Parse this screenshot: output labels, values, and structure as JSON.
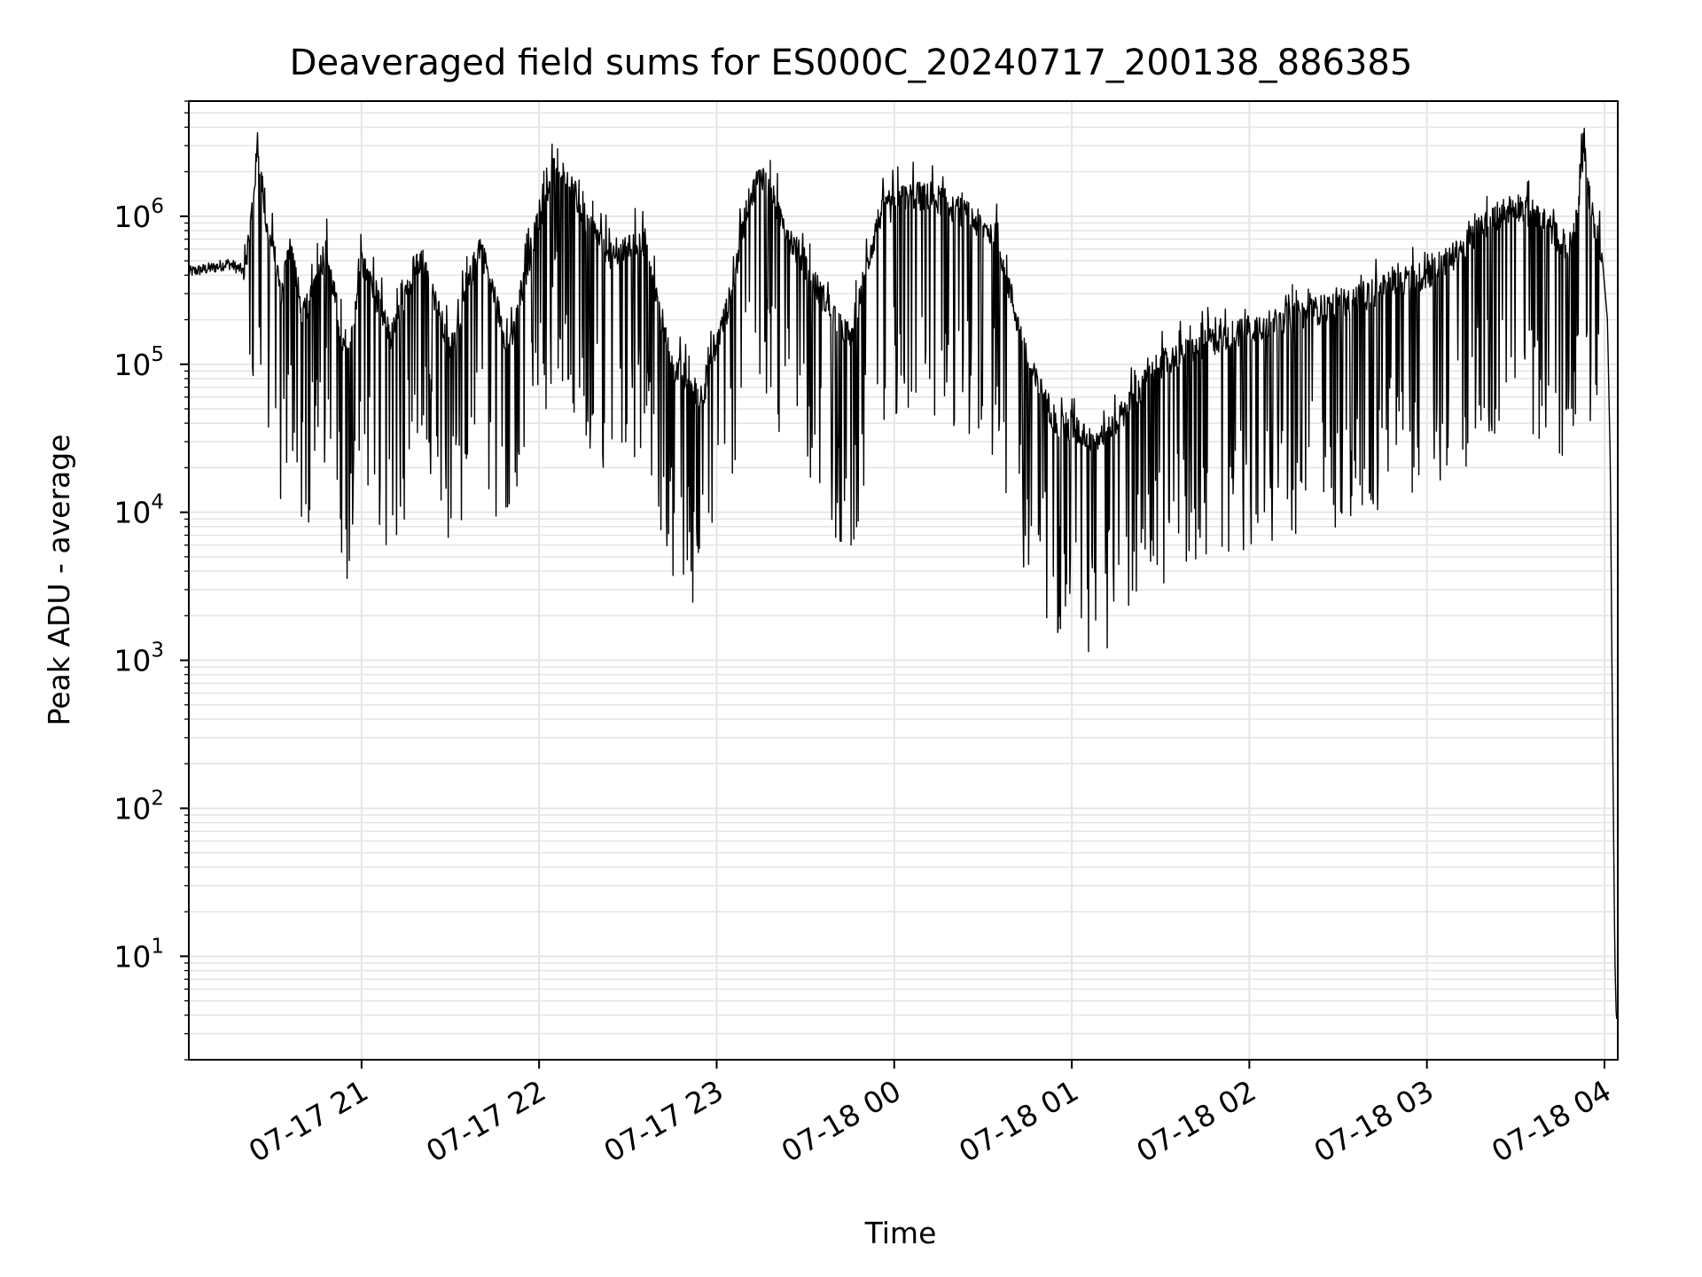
{
  "chart_data": {
    "type": "line",
    "title": "Deaveraged field sums for ES000C_20240717_200138_886385",
    "xlabel": "Time",
    "ylabel": "Peak ADU - average",
    "x_axis_kind": "time",
    "xlim": [
      "2024-07-17 20:01:38",
      "2024-07-18 04:04:30"
    ],
    "x_ticks": [
      "07-17 21",
      "07-17 22",
      "07-17 23",
      "07-18 00",
      "07-18 01",
      "07-18 02",
      "07-18 03",
      "07-18 04"
    ],
    "y_scale": "log",
    "ylim": [
      2,
      6000000
    ],
    "y_ticks": [
      {
        "base": "10",
        "exp": "1"
      },
      {
        "base": "10",
        "exp": "2"
      },
      {
        "base": "10",
        "exp": "3"
      },
      {
        "base": "10",
        "exp": "4"
      },
      {
        "base": "10",
        "exp": "5"
      },
      {
        "base": "10",
        "exp": "6"
      }
    ],
    "grid": true,
    "legend": "none",
    "line_color": "#000000",
    "grid_color": "#e5e5e5",
    "series": [
      {
        "x": [
          "2024-07-17 20:01:38",
          "2024-07-17 20:10",
          "2024-07-17 20:15",
          "2024-07-17 20:20",
          "2024-07-17 20:22",
          "2024-07-17 20:25",
          "2024-07-17 20:28",
          "2024-07-17 20:30",
          "2024-07-17 20:33",
          "2024-07-17 20:36",
          "2024-07-17 20:40",
          "2024-07-17 20:48",
          "2024-07-17 20:55",
          "2024-07-17 21:00",
          "2024-07-17 21:10",
          "2024-07-17 21:20",
          "2024-07-17 21:30",
          "2024-07-17 21:40",
          "2024-07-17 21:50",
          "2024-07-17 21:58",
          "2024-07-17 22:03",
          "2024-07-17 22:06",
          "2024-07-17 22:10",
          "2024-07-17 22:15",
          "2024-07-17 22:25",
          "2024-07-17 22:35",
          "2024-07-17 22:45",
          "2024-07-17 22:55",
          "2024-07-17 23:05",
          "2024-07-17 23:10",
          "2024-07-17 23:15",
          "2024-07-17 23:25",
          "2024-07-17 23:35",
          "2024-07-17 23:45",
          "2024-07-17 23:55",
          "2024-07-18 00:05",
          "2024-07-18 00:15",
          "2024-07-18 00:25",
          "2024-07-18 00:35",
          "2024-07-18 00:45",
          "2024-07-18 00:55",
          "2024-07-18 01:10",
          "2024-07-18 01:30",
          "2024-07-18 01:50",
          "2024-07-18 02:10",
          "2024-07-18 02:30",
          "2024-07-18 02:50",
          "2024-07-18 03:00",
          "2024-07-18 03:10",
          "2024-07-18 03:20",
          "2024-07-18 03:30",
          "2024-07-18 03:40",
          "2024-07-18 03:48",
          "2024-07-18 03:50",
          "2024-07-18 03:53",
          "2024-07-18 03:56",
          "2024-07-18 03:59",
          "2024-07-18 04:01",
          "2024-07-18 04:02",
          "2024-07-18 04:02:30",
          "2024-07-18 04:03",
          "2024-07-18 04:03:30",
          "2024-07-18 04:04",
          "2024-07-18 04:04:30"
        ],
        "y": [
          420000,
          450000,
          480000,
          430000,
          700000,
          3000000,
          800000,
          600000,
          300000,
          700000,
          200000,
          600000,
          100000,
          500000,
          150000,
          550000,
          120000,
          650000,
          120000,
          700000,
          1500000,
          2500000,
          1800000,
          1000000,
          500000,
          700000,
          100000,
          60000,
          300000,
          1100000,
          2000000,
          700000,
          300000,
          150000,
          1000000,
          1400000,
          1300000,
          1000000,
          700000,
          100000,
          40000,
          30000,
          100000,
          150000,
          200000,
          250000,
          350000,
          400000,
          550000,
          900000,
          1200000,
          900000,
          600000,
          800000,
          2800000,
          900000,
          600000,
          200000,
          20000,
          1000,
          100,
          10,
          3.8,
          3.8
        ]
      }
    ]
  }
}
